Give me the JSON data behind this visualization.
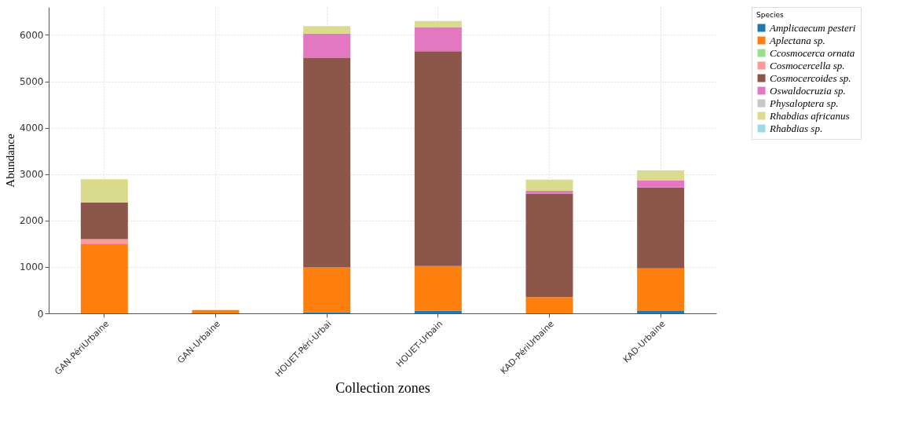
{
  "chart_data": {
    "type": "bar",
    "stacked": true,
    "xlabel": "Collection zones",
    "ylabel": "Abundance",
    "legend_title": "Species",
    "categories": [
      "GAN-PériUrbaine",
      "GAN-Urbaine",
      "HOUET-Péri-Urbai",
      "HOUET-Urbain",
      "KAD-PériUrbaine",
      "KAD-Urbaine"
    ],
    "series": [
      {
        "name": "Amplicaecum pesteri",
        "color": "#1f77b4",
        "values": [
          0,
          0,
          20,
          60,
          0,
          50
        ]
      },
      {
        "name": "Aplectana sp.",
        "color": "#ff7f0e",
        "values": [
          1490,
          70,
          970,
          960,
          350,
          920
        ]
      },
      {
        "name": "Ccosmocerca ornata",
        "color": "#98df8a",
        "values": [
          0,
          0,
          0,
          0,
          0,
          0
        ]
      },
      {
        "name": "Cosmocercella sp.",
        "color": "#ff9896",
        "values": [
          110,
          0,
          0,
          0,
          0,
          0
        ]
      },
      {
        "name": "Cosmocercoides sp.",
        "color": "#8c564b",
        "values": [
          790,
          0,
          4510,
          4630,
          2230,
          1740
        ]
      },
      {
        "name": "Oswaldocruzia sp.",
        "color": "#e377c2",
        "values": [
          0,
          0,
          530,
          520,
          60,
          150
        ]
      },
      {
        "name": "Physaloptera sp.",
        "color": "#c7c7c7",
        "values": [
          0,
          0,
          0,
          0,
          0,
          0
        ]
      },
      {
        "name": "Rhabdias africanus",
        "color": "#dbdb8d",
        "values": [
          500,
          0,
          160,
          130,
          240,
          220
        ]
      },
      {
        "name": "Rhabdias sp.",
        "color": "#9edae5",
        "values": [
          0,
          0,
          0,
          0,
          0,
          0
        ]
      }
    ],
    "ylim": [
      0,
      6600
    ],
    "yticks": [
      0,
      1000,
      2000,
      3000,
      4000,
      5000,
      6000
    ],
    "grid": true,
    "legend": "top right"
  }
}
